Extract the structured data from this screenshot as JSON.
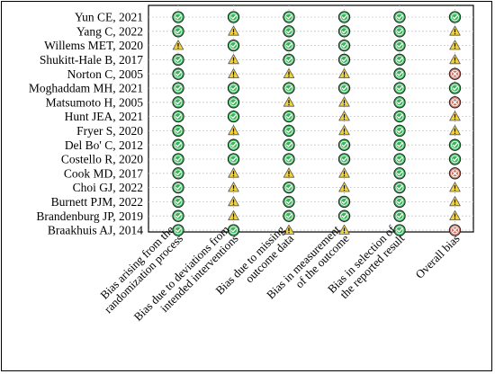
{
  "chart_data": {
    "type": "table",
    "studies": [
      "Yun CE, 2021",
      "Yang C, 2022",
      "Willems MET, 2020",
      "Shukitt-Hale B, 2017",
      "Norton C, 2005",
      "Moghaddam MH, 2021",
      "Matsumoto H, 2005",
      "Hunt JEA, 2021",
      "Fryer S, 2020",
      "Del Bo' C, 2012",
      "Costello R, 2020",
      "Cook MD, 2017",
      "Choi GJ, 2022",
      "Burnett PJM, 2022",
      "Brandenburg JP, 2019",
      "Braakhuis AJ, 2014"
    ],
    "domains": [
      [
        "Bias arising from the",
        "randomization process"
      ],
      [
        "Bias due to deviations from",
        "intended interventions"
      ],
      [
        "Bias due to missing",
        "outcome data"
      ],
      [
        "Bias in measurement",
        "of the outcome"
      ],
      [
        "Bias in selection of",
        "the reported result"
      ],
      [
        "Overall bias"
      ]
    ],
    "judgement_codes": {
      "L": "low risk",
      "S": "some concerns",
      "H": "high risk"
    },
    "judgements": [
      [
        "L",
        "L",
        "L",
        "L",
        "L",
        "L"
      ],
      [
        "L",
        "S",
        "L",
        "L",
        "L",
        "S"
      ],
      [
        "S",
        "L",
        "L",
        "L",
        "L",
        "S"
      ],
      [
        "L",
        "S",
        "L",
        "L",
        "L",
        "S"
      ],
      [
        "L",
        "S",
        "S",
        "S",
        "L",
        "H"
      ],
      [
        "L",
        "L",
        "L",
        "L",
        "L",
        "L"
      ],
      [
        "L",
        "L",
        "S",
        "S",
        "L",
        "H"
      ],
      [
        "L",
        "L",
        "L",
        "S",
        "L",
        "S"
      ],
      [
        "L",
        "S",
        "L",
        "S",
        "L",
        "S"
      ],
      [
        "L",
        "L",
        "L",
        "L",
        "L",
        "L"
      ],
      [
        "L",
        "L",
        "L",
        "L",
        "L",
        "L"
      ],
      [
        "L",
        "S",
        "S",
        "S",
        "L",
        "H"
      ],
      [
        "L",
        "S",
        "L",
        "S",
        "L",
        "S"
      ],
      [
        "L",
        "S",
        "L",
        "L",
        "L",
        "S"
      ],
      [
        "L",
        "S",
        "L",
        "L",
        "L",
        "S"
      ],
      [
        "L",
        "L",
        "S",
        "S",
        "L",
        "H"
      ]
    ],
    "grid": true
  },
  "colors": {
    "low": "#3cb35c",
    "some": "#f2d33b",
    "high": "#c8786c",
    "gridline": "#b8b8b8",
    "outline": "#000000"
  },
  "icons": {
    "low": "check-icon",
    "some": "exclamation-icon",
    "high": "cross-icon"
  }
}
